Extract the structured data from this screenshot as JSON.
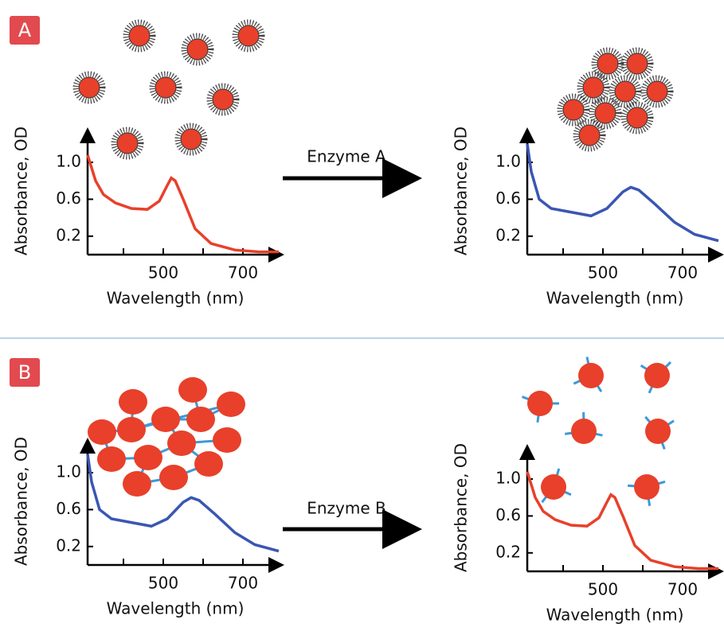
{
  "panel_labels": [
    "A",
    "B"
  ],
  "arrow_labels": [
    "Enzyme A",
    "Enzyme B"
  ],
  "chart_data": [
    {
      "type": "line",
      "x_label": "Wavelength (nm)",
      "y_label": "Absorbance, OD",
      "color": "#e8402a",
      "x": [
        310,
        330,
        350,
        380,
        420,
        460,
        490,
        510,
        520,
        530,
        550,
        580,
        620,
        680,
        740,
        790
      ],
      "values": [
        1.08,
        0.8,
        0.65,
        0.56,
        0.5,
        0.49,
        0.58,
        0.75,
        0.83,
        0.8,
        0.6,
        0.28,
        0.12,
        0.05,
        0.03,
        0.03
      ],
      "xlim": [
        310,
        790
      ],
      "ylim": [
        0,
        1.25
      ],
      "xticks": [
        500,
        700
      ],
      "yticks": [
        0.2,
        0.6,
        {
          "value": 1,
          "label": "1.0"
        }
      ]
    },
    {
      "type": "line",
      "x_label": "Wavelength (nm)",
      "y_label": "Absorbance, OD",
      "color": "#3a56b4",
      "x": [
        310,
        320,
        340,
        370,
        420,
        470,
        510,
        550,
        570,
        590,
        630,
        680,
        730,
        790
      ],
      "values": [
        1.2,
        0.9,
        0.6,
        0.5,
        0.46,
        0.42,
        0.5,
        0.68,
        0.73,
        0.7,
        0.55,
        0.35,
        0.22,
        0.15
      ],
      "xlim": [
        310,
        790
      ],
      "ylim": [
        0,
        1.25
      ],
      "xticks": [
        500,
        700
      ],
      "yticks": [
        0.2,
        0.6,
        {
          "value": 1,
          "label": "1.0"
        }
      ]
    },
    {
      "type": "line",
      "x_label": "Wavelength (nm)",
      "y_label": "Absorbance, OD",
      "color": "#3a56b4",
      "x": [
        310,
        320,
        340,
        370,
        420,
        470,
        510,
        550,
        570,
        590,
        630,
        680,
        730,
        790
      ],
      "values": [
        1.2,
        0.9,
        0.6,
        0.5,
        0.46,
        0.42,
        0.5,
        0.68,
        0.73,
        0.7,
        0.55,
        0.35,
        0.22,
        0.15
      ],
      "xlim": [
        310,
        790
      ],
      "ylim": [
        0,
        1.25
      ],
      "xticks": [
        500,
        700
      ],
      "yticks": [
        0.2,
        0.6,
        {
          "value": 1,
          "label": "1.0"
        }
      ]
    },
    {
      "type": "line",
      "x_label": "Wavelength (nm)",
      "y_label": "Absorbance, OD",
      "color": "#e8402a",
      "x": [
        310,
        330,
        350,
        380,
        420,
        460,
        490,
        510,
        520,
        530,
        550,
        580,
        620,
        680,
        740,
        790
      ],
      "values": [
        1.08,
        0.8,
        0.65,
        0.56,
        0.5,
        0.49,
        0.58,
        0.75,
        0.83,
        0.8,
        0.6,
        0.28,
        0.12,
        0.05,
        0.03,
        0.03
      ],
      "xlim": [
        310,
        790
      ],
      "ylim": [
        0,
        1.25
      ],
      "xticks": [
        500,
        700
      ],
      "yticks": [
        0.2,
        0.6,
        {
          "value": 1,
          "label": "1.0"
        }
      ]
    }
  ]
}
